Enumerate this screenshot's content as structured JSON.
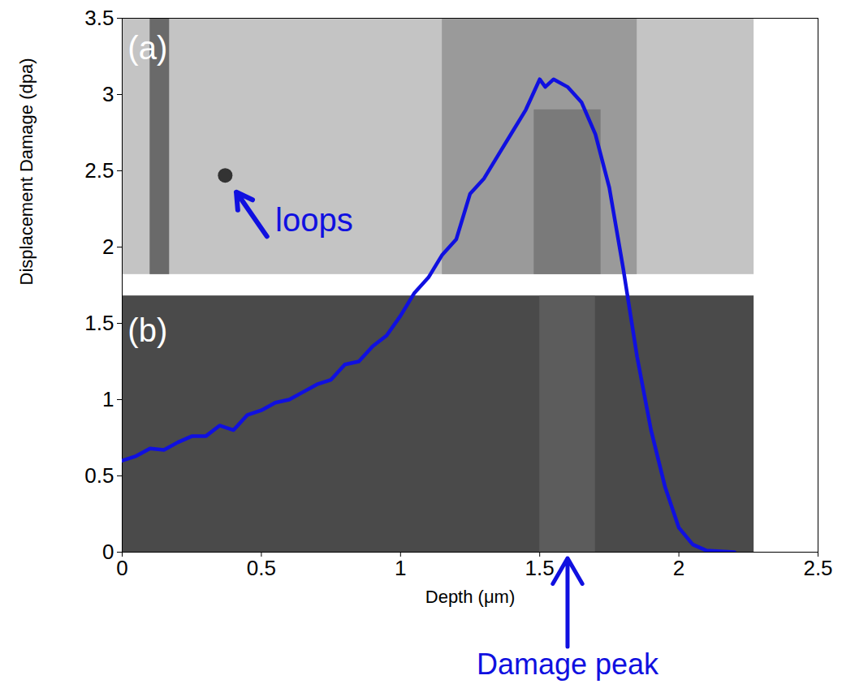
{
  "chart_data": {
    "type": "line",
    "xlabel": "Depth (μm)",
    "ylabel": "Displacement Damage (dpa)",
    "annotations": [
      "(a)",
      "(b)",
      "loops",
      "Damage peak"
    ],
    "x": [
      0,
      0.05,
      0.1,
      0.15,
      0.2,
      0.25,
      0.3,
      0.35,
      0.4,
      0.45,
      0.5,
      0.55,
      0.6,
      0.65,
      0.7,
      0.75,
      0.8,
      0.85,
      0.9,
      0.95,
      1.0,
      1.05,
      1.1,
      1.15,
      1.2,
      1.25,
      1.3,
      1.35,
      1.4,
      1.45,
      1.5,
      1.52,
      1.55,
      1.6,
      1.65,
      1.7,
      1.75,
      1.8,
      1.85,
      1.9,
      1.95,
      2.0,
      2.05,
      2.1,
      2.2
    ],
    "values": [
      0.6,
      0.63,
      0.68,
      0.67,
      0.72,
      0.76,
      0.76,
      0.83,
      0.8,
      0.9,
      0.93,
      0.98,
      1.0,
      1.05,
      1.1,
      1.13,
      1.23,
      1.25,
      1.35,
      1.42,
      1.55,
      1.7,
      1.8,
      1.95,
      2.05,
      2.35,
      2.45,
      2.6,
      2.75,
      2.9,
      3.1,
      3.05,
      3.1,
      3.05,
      2.95,
      2.74,
      2.39,
      1.86,
      1.28,
      0.8,
      0.43,
      0.16,
      0.05,
      0.01,
      0
    ],
    "color": "#1010e0",
    "xlim": [
      0,
      2.5
    ],
    "ylim": [
      0,
      3.5
    ],
    "xticks": [
      0,
      0.5,
      1,
      1.5,
      2,
      2.5
    ],
    "yticks": [
      0,
      0.5,
      1,
      1.5,
      2,
      2.5,
      3,
      3.5
    ],
    "grid": false
  }
}
